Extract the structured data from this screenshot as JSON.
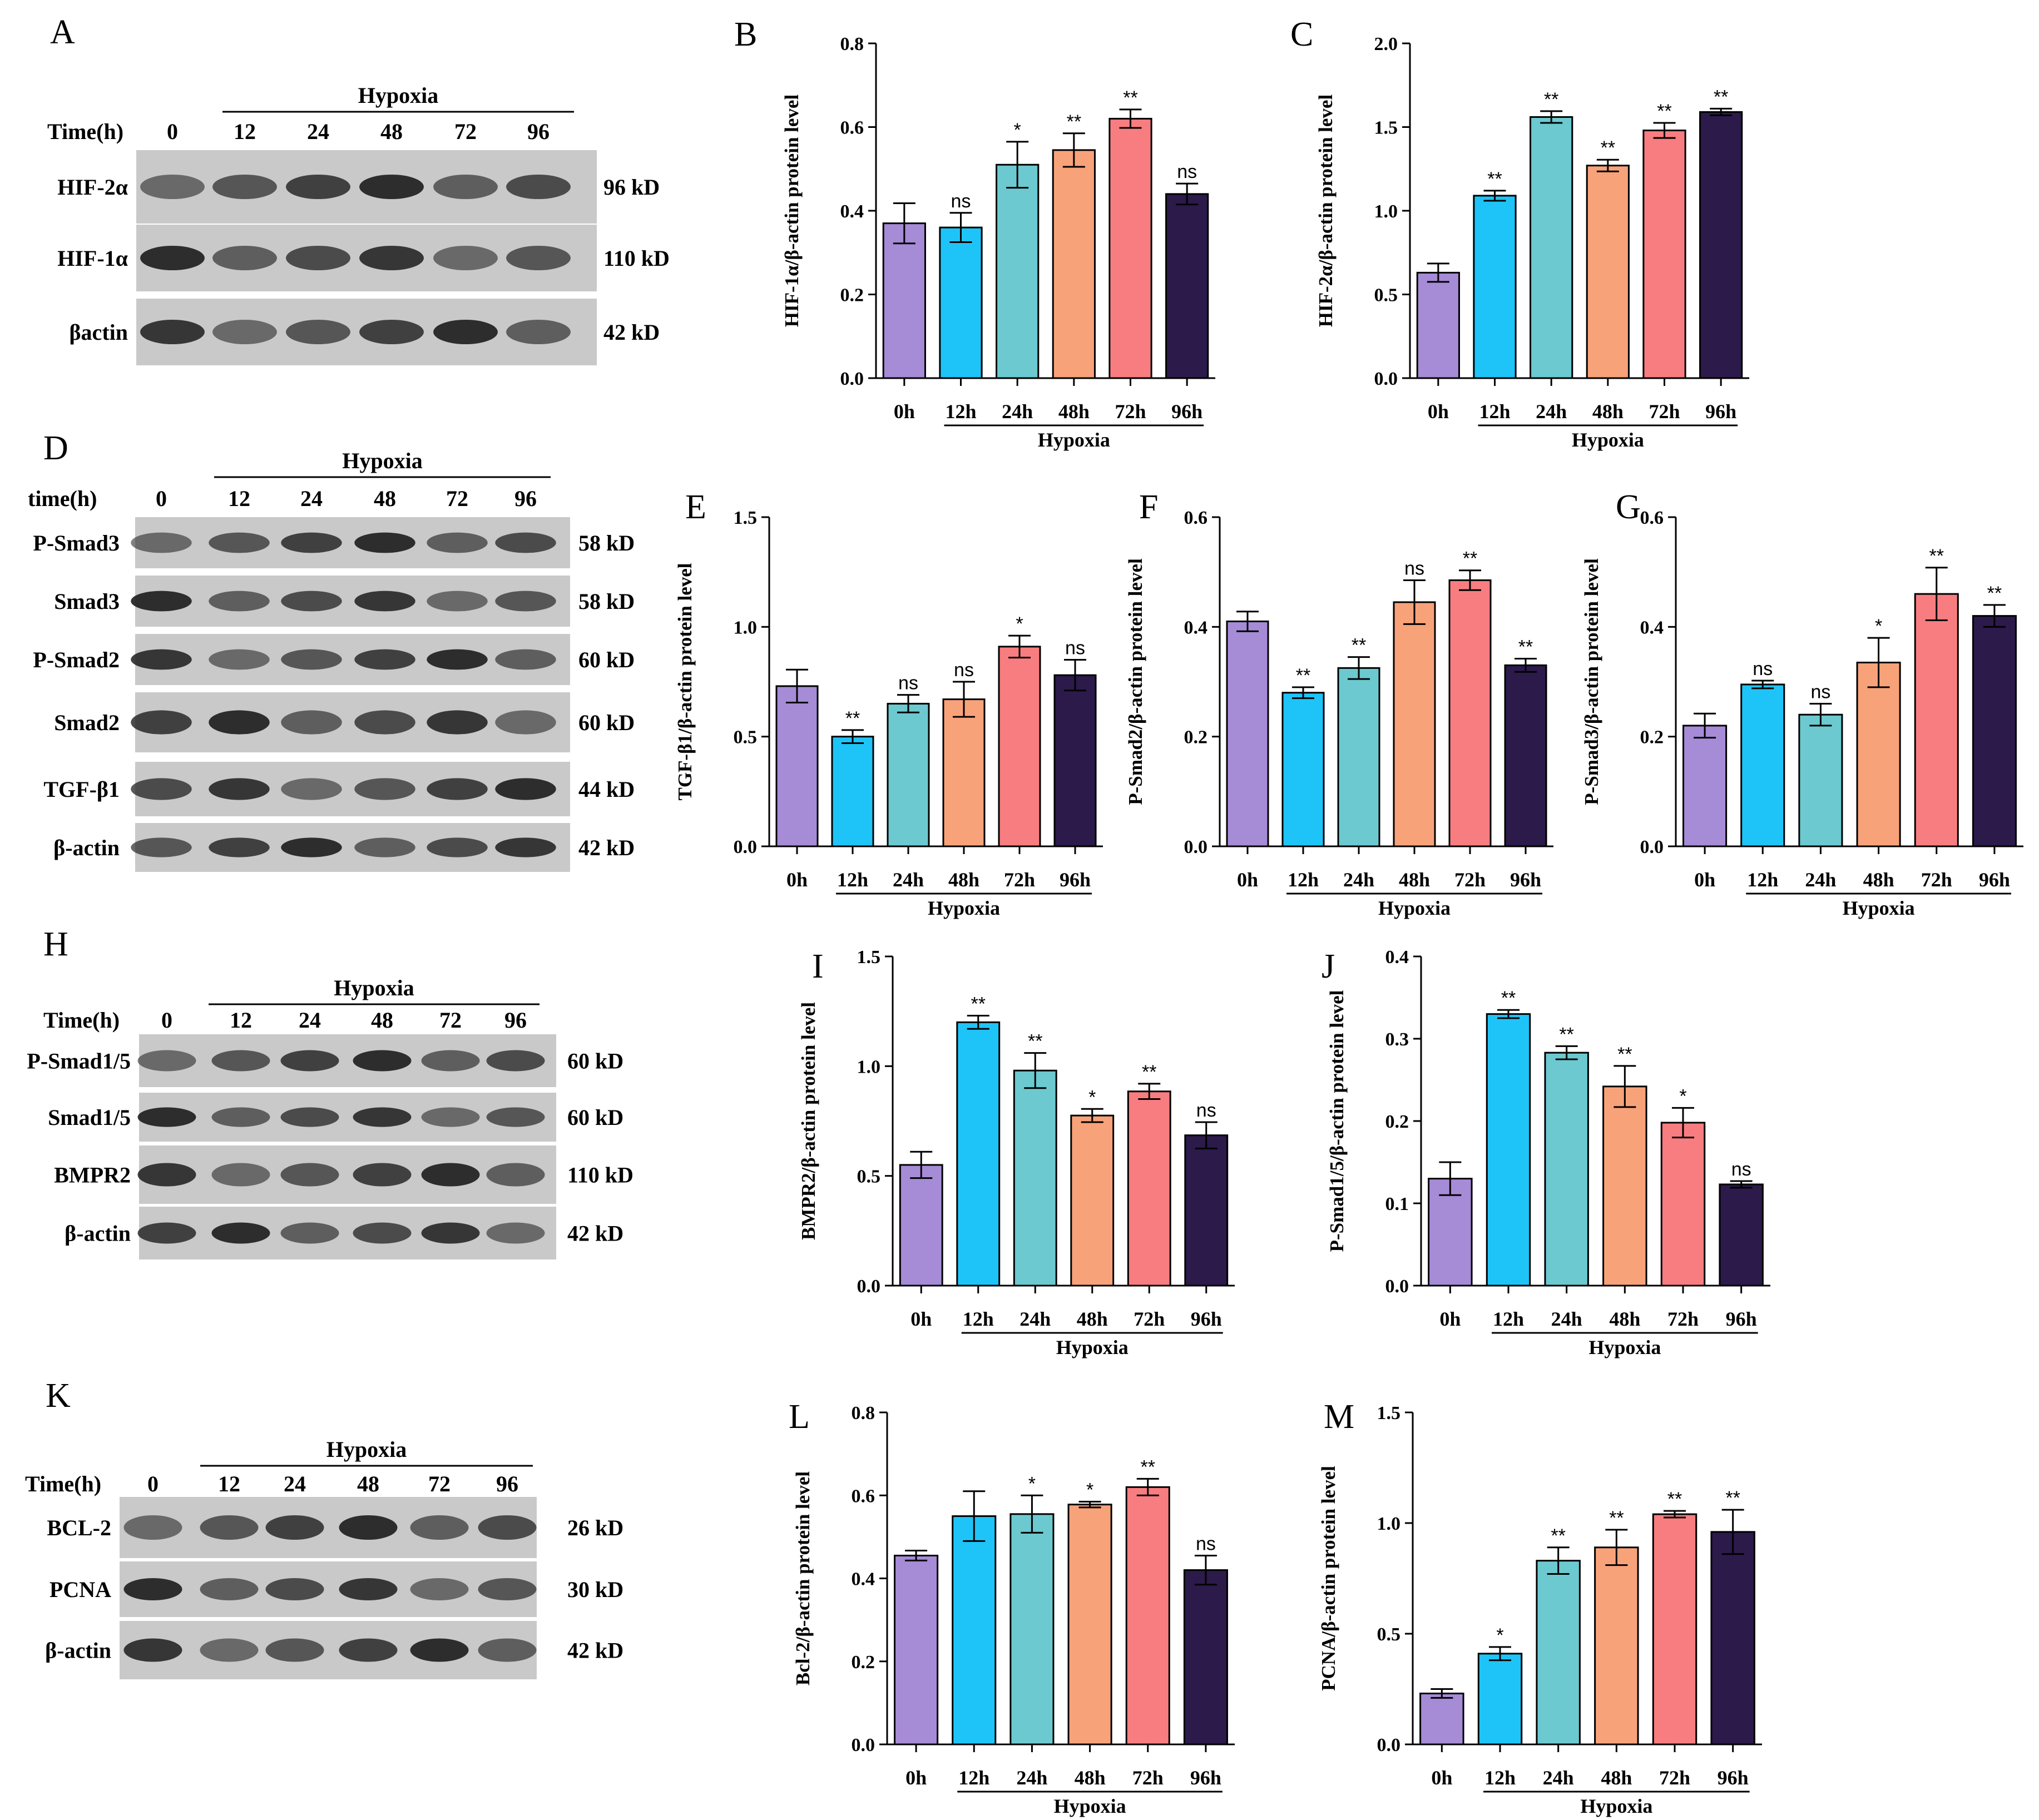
{
  "figure": {
    "x_labels": [
      "0h",
      "12h",
      "24h",
      "48h",
      "72h",
      "96h"
    ],
    "group_label": "Hypoxia",
    "bar_colors": [
      "#a68bd6",
      "#1ec4f7",
      "#6cc9d0",
      "#f8a27a",
      "#f87d80",
      "#2b1a4a"
    ]
  },
  "blots": [
    {
      "panel": "A",
      "group_label": "Hypoxia",
      "time_header": "Time(h)",
      "times": [
        "0",
        "12",
        "24",
        "48",
        "72",
        "96"
      ],
      "rows": [
        {
          "name": "HIF-2α",
          "kd": "96 kD"
        },
        {
          "name": "HIF-1α",
          "kd": "110 kD"
        },
        {
          "name": "βactin",
          "kd": "42 kD"
        }
      ]
    },
    {
      "panel": "D",
      "group_label": "Hypoxia",
      "time_header": "time(h)",
      "times": [
        "0",
        "12",
        "24",
        "48",
        "72",
        "96"
      ],
      "rows": [
        {
          "name": "P-Smad3",
          "kd": "58 kD"
        },
        {
          "name": "Smad3",
          "kd": "58 kD"
        },
        {
          "name": "P-Smad2",
          "kd": "60 kD"
        },
        {
          "name": "Smad2",
          "kd": "60 kD"
        },
        {
          "name": "TGF-β1",
          "kd": "44 kD"
        },
        {
          "name": "β-actin",
          "kd": "42 kD"
        }
      ]
    },
    {
      "panel": "H",
      "group_label": "Hypoxia",
      "time_header": "Time(h)",
      "times": [
        "0",
        "12",
        "24",
        "48",
        "72",
        "96"
      ],
      "rows": [
        {
          "name": "P-Smad1/5",
          "kd": "60 kD"
        },
        {
          "name": "Smad1/5",
          "kd": "60 kD"
        },
        {
          "name": "BMPR2",
          "kd": "110 kD"
        },
        {
          "name": "β-actin",
          "kd": "42 kD"
        }
      ]
    },
    {
      "panel": "K",
      "group_label": "Hypoxia",
      "time_header": "Time(h)",
      "times": [
        "0",
        "12",
        "24",
        "48",
        "72",
        "96"
      ],
      "rows": [
        {
          "name": "BCL-2",
          "kd": "26 kD"
        },
        {
          "name": "PCNA",
          "kd": "30 kD"
        },
        {
          "name": "β-actin",
          "kd": "42 kD"
        }
      ]
    }
  ],
  "chart_data": [
    {
      "panel": "B",
      "type": "bar",
      "ylabel": "HIF-1α/β-actin protein level",
      "ylim": [
        0,
        0.8
      ],
      "yticks": [
        "0.0",
        "0.2",
        "0.4",
        "0.6",
        "0.8"
      ],
      "categories": [
        "0h",
        "12h",
        "24h",
        "48h",
        "72h",
        "96h"
      ],
      "values": [
        0.37,
        0.36,
        0.51,
        0.545,
        0.62,
        0.44
      ],
      "errors": [
        0.048,
        0.035,
        0.055,
        0.04,
        0.022,
        0.025
      ],
      "sig": [
        "",
        "ns",
        "*",
        "**",
        "**",
        "ns"
      ]
    },
    {
      "panel": "C",
      "type": "bar",
      "ylabel": "HIF-2α/β-actin protein level",
      "ylim": [
        0,
        2.0
      ],
      "yticks": [
        "0.0",
        "0.5",
        "1.0",
        "1.5",
        "2.0"
      ],
      "categories": [
        "0h",
        "12h",
        "24h",
        "48h",
        "72h",
        "96h"
      ],
      "values": [
        0.63,
        1.09,
        1.56,
        1.27,
        1.48,
        1.59
      ],
      "errors": [
        0.055,
        0.03,
        0.035,
        0.035,
        0.045,
        0.02
      ],
      "sig": [
        "",
        "**",
        "**",
        "**",
        "**",
        "**"
      ]
    },
    {
      "panel": "E",
      "type": "bar",
      "ylabel": "TGF-β1/β-actin protein level",
      "ylim": [
        0,
        1.5
      ],
      "yticks": [
        "0.0",
        "0.5",
        "1.0",
        "1.5"
      ],
      "categories": [
        "0h",
        "12h",
        "24h",
        "48h",
        "72h",
        "96h"
      ],
      "values": [
        0.73,
        0.5,
        0.65,
        0.67,
        0.91,
        0.78
      ],
      "errors": [
        0.075,
        0.03,
        0.04,
        0.08,
        0.05,
        0.07
      ],
      "sig": [
        "",
        "**",
        "ns",
        "ns",
        "*",
        "ns"
      ]
    },
    {
      "panel": "F",
      "type": "bar",
      "ylabel": "P-Smad2/β-actin protein level",
      "ylim": [
        0,
        0.6
      ],
      "yticks": [
        "0.0",
        "0.2",
        "0.4",
        "0.6"
      ],
      "categories": [
        "0h",
        "12h",
        "24h",
        "48h",
        "72h",
        "96h"
      ],
      "values": [
        0.41,
        0.28,
        0.325,
        0.445,
        0.485,
        0.33
      ],
      "errors": [
        0.018,
        0.01,
        0.02,
        0.04,
        0.018,
        0.012
      ],
      "sig": [
        "",
        "**",
        "**",
        "ns",
        "**",
        "**"
      ]
    },
    {
      "panel": "G",
      "type": "bar",
      "ylabel": "P-Smad3/β-actin protein level",
      "ylim": [
        0,
        0.6
      ],
      "yticks": [
        "0.0",
        "0.2",
        "0.4",
        "0.6"
      ],
      "categories": [
        "0h",
        "12h",
        "24h",
        "48h",
        "72h",
        "96h"
      ],
      "values": [
        0.22,
        0.295,
        0.24,
        0.335,
        0.46,
        0.42
      ],
      "errors": [
        0.022,
        0.007,
        0.02,
        0.045,
        0.048,
        0.02
      ],
      "sig": [
        "",
        "ns",
        "ns",
        "*",
        "**",
        "**"
      ]
    },
    {
      "panel": "I",
      "type": "bar",
      "ylabel": "BMPR2/β-actin protein level",
      "ylim": [
        0,
        1.5
      ],
      "yticks": [
        "0.0",
        "0.5",
        "1.0",
        "1.5"
      ],
      "categories": [
        "0h",
        "12h",
        "24h",
        "48h",
        "72h",
        "96h"
      ],
      "values": [
        0.55,
        1.2,
        0.98,
        0.775,
        0.885,
        0.685
      ],
      "errors": [
        0.06,
        0.03,
        0.08,
        0.03,
        0.035,
        0.06
      ],
      "sig": [
        "",
        "**",
        "**",
        "*",
        "**",
        "ns"
      ]
    },
    {
      "panel": "J",
      "type": "bar",
      "ylabel": "P-Smad1/5/β-actin protein level",
      "ylim": [
        0,
        0.4
      ],
      "yticks": [
        "0.0",
        "0.1",
        "0.2",
        "0.3",
        "0.4"
      ],
      "categories": [
        "0h",
        "12h",
        "24h",
        "48h",
        "72h",
        "96h"
      ],
      "values": [
        0.13,
        0.33,
        0.283,
        0.242,
        0.198,
        0.123
      ],
      "errors": [
        0.02,
        0.005,
        0.008,
        0.025,
        0.018,
        0.004
      ],
      "sig": [
        "",
        "**",
        "**",
        "**",
        "*",
        "ns"
      ]
    },
    {
      "panel": "L",
      "type": "bar",
      "ylabel": "Bcl-2/β-actin protein level",
      "ylim": [
        0,
        0.8
      ],
      "yticks": [
        "0.0",
        "0.2",
        "0.4",
        "0.6",
        "0.8"
      ],
      "categories": [
        "0h",
        "12h",
        "24h",
        "48h",
        "72h",
        "96h"
      ],
      "values": [
        0.455,
        0.55,
        0.555,
        0.578,
        0.62,
        0.42
      ],
      "errors": [
        0.012,
        0.06,
        0.045,
        0.007,
        0.02,
        0.035
      ],
      "sig": [
        "",
        "",
        "*",
        "*",
        "**",
        "ns"
      ]
    },
    {
      "panel": "M",
      "type": "bar",
      "ylabel": "PCNA/β-actin protein level",
      "ylim": [
        0,
        1.5
      ],
      "yticks": [
        "0.0",
        "0.5",
        "1.0",
        "1.5"
      ],
      "categories": [
        "0h",
        "12h",
        "24h",
        "48h",
        "72h",
        "96h"
      ],
      "values": [
        0.23,
        0.41,
        0.83,
        0.89,
        1.04,
        0.96
      ],
      "errors": [
        0.02,
        0.03,
        0.06,
        0.08,
        0.015,
        0.1
      ],
      "sig": [
        "",
        "*",
        "**",
        "**",
        "**",
        "**"
      ]
    }
  ]
}
